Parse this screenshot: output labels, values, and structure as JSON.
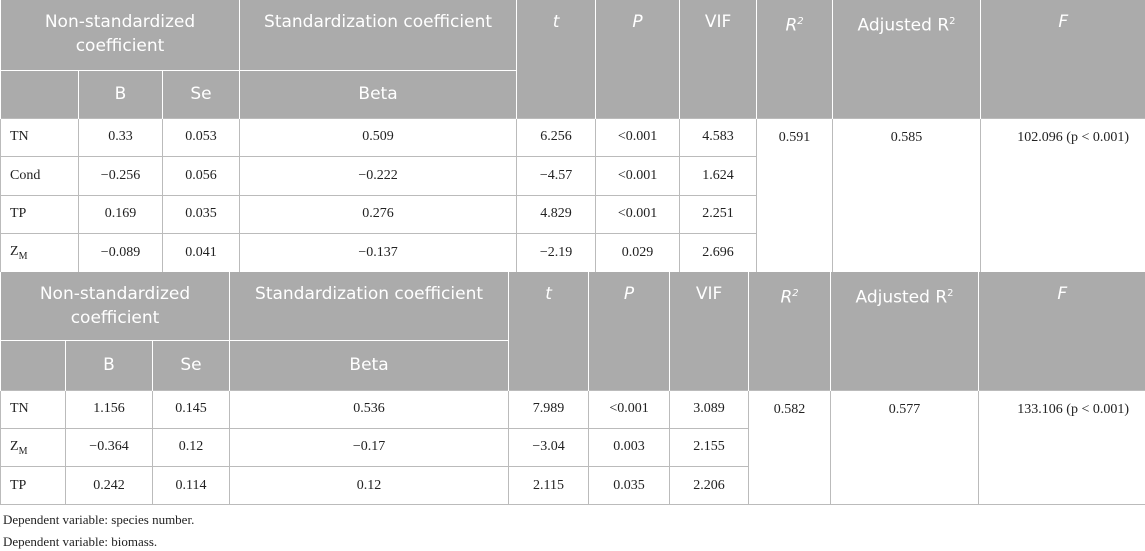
{
  "tables": [
    {
      "header": {
        "non_std": "Non-standardized coefficient",
        "std": "Standardization coefficient",
        "t": "t",
        "p": "P",
        "vif": "VIF",
        "r2": {
          "text": "R",
          "sup": "2"
        },
        "adj": {
          "text": "Adjusted R",
          "sup": "2"
        },
        "f": "F",
        "b": "B",
        "se": "Se",
        "beta": "Beta"
      },
      "rows": [
        [
          "TN",
          "0.33",
          "0.053",
          "0.509",
          "6.256",
          "<0.001",
          "4.583"
        ],
        [
          "Cond",
          "−0.256",
          "0.056",
          "−0.222",
          "−4.57",
          "<0.001",
          "1.624"
        ],
        [
          "TP",
          "0.169",
          "0.035",
          "0.276",
          "4.829",
          "<0.001",
          "2.251"
        ],
        [
          {
            "text": "Z",
            "sub": "M"
          },
          "−0.089",
          "0.041",
          "−0.137",
          "−2.19",
          "0.029",
          "2.696"
        ]
      ],
      "r2": "0.591",
      "adj": "0.585",
      "f": "102.096 (p < 0.001)"
    },
    {
      "header": {
        "non_std": "Non-standardized coefficient",
        "std": "Standardization coefficient",
        "t": "t",
        "p": "P",
        "vif": "VIF",
        "r2": {
          "text": "R",
          "sup": "2"
        },
        "adj": {
          "text": "Adjusted R",
          "sup": "2"
        },
        "f": "F",
        "b": "B",
        "se": "Se",
        "beta": "Beta"
      },
      "rows": [
        [
          "TN",
          "1.156",
          "0.145",
          "0.536",
          "7.989",
          "<0.001",
          "3.089"
        ],
        [
          {
            "text": "Z",
            "sub": "M"
          },
          "−0.364",
          "0.12",
          "−0.17",
          "−3.04",
          "0.003",
          "2.155"
        ],
        [
          "TP",
          "0.242",
          "0.114",
          "0.12",
          "2.115",
          "0.035",
          "2.206"
        ]
      ],
      "r2": "0.582",
      "adj": "0.577",
      "f": "133.106 (p < 0.001)"
    }
  ],
  "notes": [
    "Dependent variable: species number.",
    "Dependent variable: biomass."
  ]
}
